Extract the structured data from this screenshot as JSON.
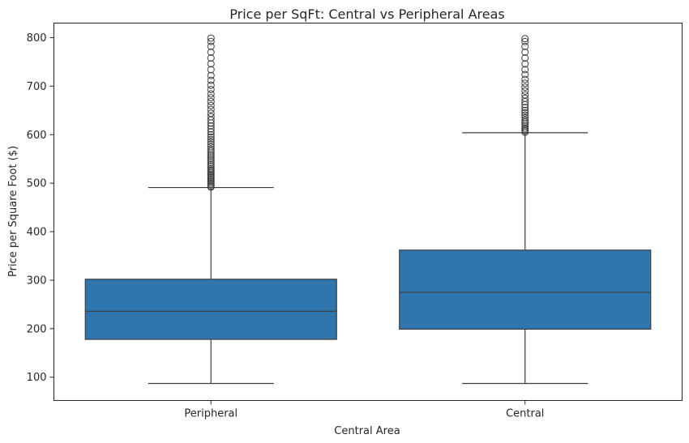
{
  "chart_data": {
    "type": "box",
    "title": "Price per SqFt: Central vs Peripheral Areas",
    "xlabel": "Central Area",
    "ylabel": "Price per Square Foot ($)",
    "ylim": [
      52,
      830
    ],
    "yticks": [
      100,
      200,
      300,
      400,
      500,
      600,
      700,
      800
    ],
    "grid": false,
    "color": "#2e76ad",
    "edge_color": "#3d3d3d",
    "categories": [
      "Peripheral",
      "Central"
    ],
    "boxes": [
      {
        "category": "Peripheral",
        "whisker_low": 87,
        "q1": 178,
        "median": 236,
        "q3": 302,
        "whisker_high": 491,
        "outliers": [
          492,
          494,
          497,
          500,
          503,
          506,
          509,
          512,
          515,
          518,
          521,
          524,
          527,
          530,
          534,
          538,
          542,
          546,
          550,
          554,
          558,
          562,
          566,
          570,
          575,
          580,
          585,
          590,
          595,
          600,
          606,
          612,
          618,
          624,
          630,
          637,
          644,
          652,
          660,
          668,
          676,
          684,
          693,
          702,
          712,
          722,
          734,
          746,
          758,
          770,
          782,
          792,
          799
        ]
      },
      {
        "category": "Central",
        "whisker_low": 87,
        "q1": 199,
        "median": 275,
        "q3": 362,
        "whisker_high": 604,
        "outliers": [
          605,
          608,
          611,
          614,
          618,
          622,
          626,
          630,
          635,
          640,
          645,
          650,
          656,
          662,
          668,
          675,
          682,
          690,
          698,
          706,
          714,
          724,
          734,
          746,
          758,
          770,
          782,
          792,
          798
        ]
      }
    ]
  }
}
